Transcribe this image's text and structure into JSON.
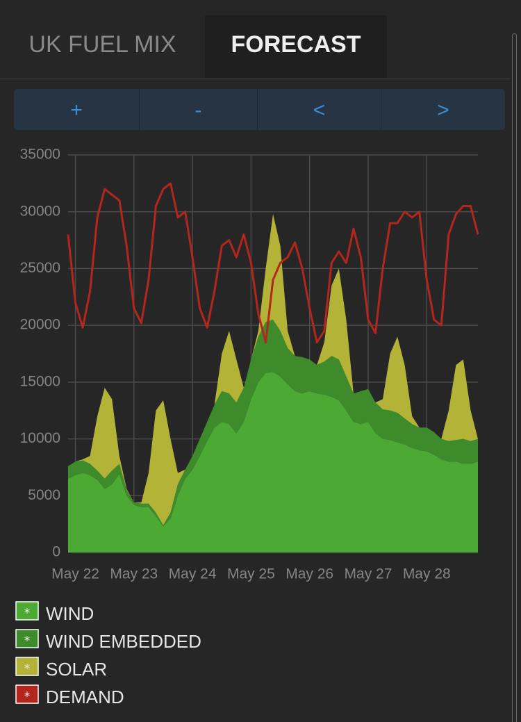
{
  "tabs": [
    "UK FUEL MIX",
    "FORECAST"
  ],
  "active_tab": 1,
  "buttons": [
    "+",
    "-",
    "<",
    ">"
  ],
  "chart_data": {
    "type": "area",
    "stacked": true,
    "grid": true,
    "x": [
      -0.125,
      0,
      0.125,
      0.25,
      0.375,
      0.5,
      0.625,
      0.75,
      0.875,
      1,
      1.125,
      1.25,
      1.375,
      1.5,
      1.625,
      1.75,
      1.875,
      2,
      2.125,
      2.25,
      2.375,
      2.5,
      2.625,
      2.75,
      2.875,
      3,
      3.125,
      3.25,
      3.375,
      3.5,
      3.625,
      3.75,
      3.875,
      4,
      4.125,
      4.25,
      4.375,
      4.5,
      4.625,
      4.75,
      4.875,
      5,
      5.125,
      5.25,
      5.375,
      5.5,
      5.625,
      5.75,
      5.875,
      6,
      6.125,
      6.25,
      6.375,
      6.5,
      6.625,
      6.75,
      6.875
    ],
    "xlim": [
      -0.125,
      6.875
    ],
    "xticks": [
      {
        "value": 0,
        "label": "May 22"
      },
      {
        "value": 1,
        "label": "May 23"
      },
      {
        "value": 2,
        "label": "May 24"
      },
      {
        "value": 3,
        "label": "May 25"
      },
      {
        "value": 4,
        "label": "May 26"
      },
      {
        "value": 5,
        "label": "May 27"
      },
      {
        "value": 6,
        "label": "May 28"
      }
    ],
    "ylim": [
      0,
      35000
    ],
    "yticks": [
      0,
      5000,
      10000,
      15000,
      20000,
      25000,
      30000,
      35000
    ],
    "series": [
      {
        "name": "WIND",
        "color": "#4caa34",
        "values": [
          6500,
          6800,
          7000,
          6800,
          6400,
          5600,
          6000,
          6900,
          5000,
          4200,
          4000,
          4000,
          3200,
          2300,
          3000,
          5000,
          6500,
          7300,
          8500,
          9800,
          11000,
          11500,
          11300,
          10500,
          11500,
          13500,
          15000,
          15800,
          15900,
          15500,
          14800,
          14200,
          14000,
          14200,
          14000,
          13900,
          13700,
          13400,
          12500,
          11500,
          11300,
          11500,
          10500,
          10000,
          9900,
          9700,
          9500,
          9200,
          9000,
          8900,
          8600,
          8200,
          8000,
          8000,
          7800,
          7800,
          8000
        ]
      },
      {
        "name": "WIND EMBEDDED",
        "color": "#3e8b2c",
        "values": [
          1100,
          1200,
          1100,
          1000,
          800,
          900,
          1200,
          900,
          500,
          200,
          300,
          300,
          300,
          100,
          500,
          1000,
          800,
          1200,
          1500,
          1700,
          2000,
          2700,
          2700,
          2700,
          3000,
          3500,
          4000,
          4500,
          4600,
          4000,
          3200,
          3100,
          3200,
          2800,
          2500,
          2900,
          3600,
          3600,
          3000,
          2500,
          2900,
          2900,
          2700,
          2600,
          2600,
          2600,
          2300,
          2100,
          2000,
          2100,
          2000,
          1800,
          1800,
          1900,
          2200,
          2000,
          2000
        ]
      },
      {
        "name": "SOLAR",
        "color": "#b3b338",
        "values": [
          0,
          0,
          100,
          700,
          4800,
          8000,
          6300,
          700,
          100,
          0,
          100,
          2700,
          9000,
          11000,
          6500,
          1000,
          0,
          0,
          0,
          0,
          0,
          3300,
          5500,
          3800,
          0,
          0,
          500,
          4700,
          9300,
          7500,
          1500,
          0,
          0,
          0,
          0,
          1700,
          6200,
          8000,
          5000,
          0,
          0,
          0,
          0,
          900,
          5000,
          6700,
          4700,
          700,
          0,
          0,
          0,
          0,
          2700,
          6600,
          7000,
          2700,
          0
        ]
      },
      {
        "name": "DEMAND",
        "color": "#b3261c",
        "kind": "line",
        "values": [
          28000,
          22000,
          19800,
          23000,
          29500,
          32000,
          31500,
          31000,
          27000,
          21500,
          20200,
          24000,
          30500,
          32000,
          32500,
          29500,
          30000,
          26000,
          21500,
          19800,
          23000,
          27000,
          27500,
          26000,
          28000,
          25500,
          21000,
          18500,
          24000,
          25500,
          26000,
          27300,
          25000,
          21500,
          18500,
          19500,
          25500,
          26500,
          25500,
          28500,
          26000,
          20500,
          19300,
          25000,
          29000,
          29000,
          30000,
          29500,
          30000,
          24000,
          20500,
          20000,
          28000,
          29800,
          30500,
          30500,
          28000
        ]
      }
    ]
  }
}
